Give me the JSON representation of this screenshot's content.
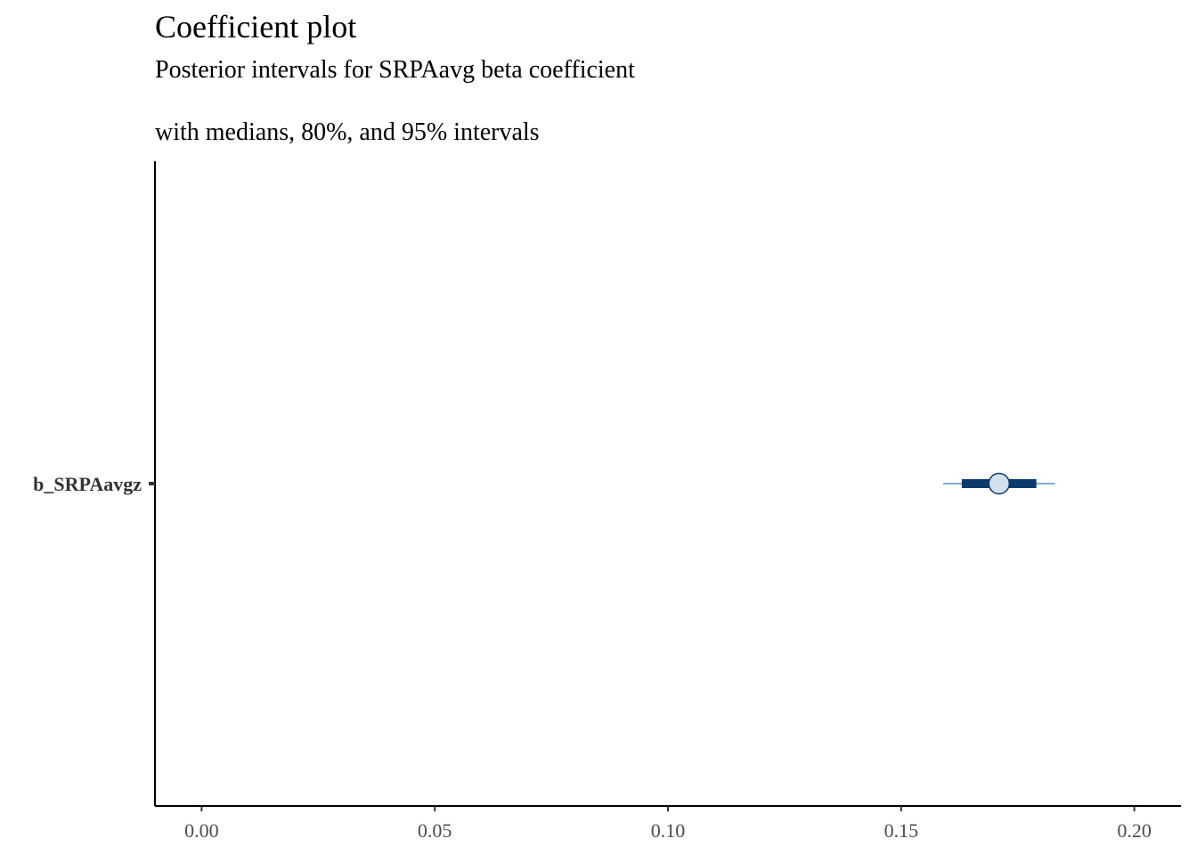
{
  "chart_data": {
    "type": "scatter",
    "title": "Coefficient plot",
    "subtitle": "Posterior intervals for SRPAavg beta coefficient",
    "subtitle2": "with medians, 80%, and 95% intervals",
    "xlabel": "",
    "ylabel": "",
    "xlim": [
      -0.01,
      0.21
    ],
    "x_ticks": [
      0.0,
      0.05,
      0.1,
      0.15,
      0.2
    ],
    "x_tick_labels": [
      "0.00",
      "0.05",
      "0.10",
      "0.15",
      "0.20"
    ],
    "grid": false,
    "parameters": [
      {
        "label": "b_SRPAavgz",
        "median": 0.171,
        "inner": [
          0.163,
          0.179
        ],
        "outer": [
          0.159,
          0.183
        ]
      }
    ],
    "colors": {
      "inner": "#0b3b6b",
      "outer": "#5b8db8",
      "point_fill": "#d1e1ec",
      "point_stroke": "#0b3b6b",
      "axis": "#000000"
    }
  }
}
